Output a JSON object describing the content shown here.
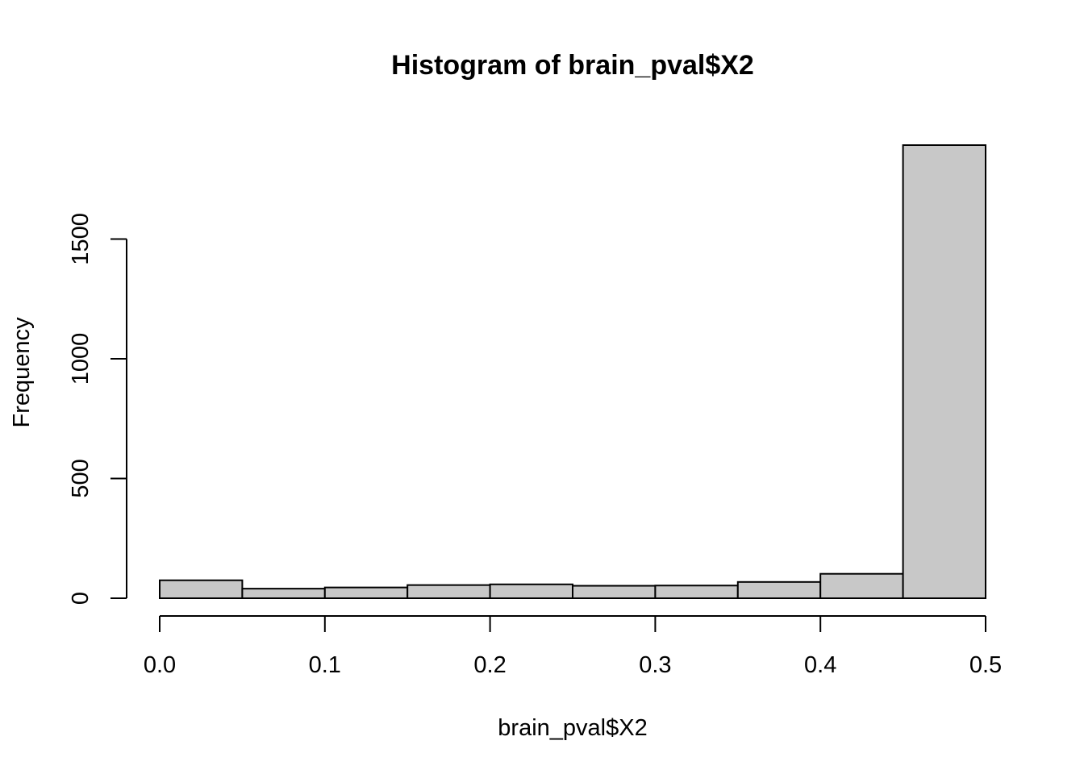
{
  "chart_data": {
    "type": "bar",
    "title": "Histogram of brain_pval$X2",
    "xlabel": "brain_pval$X2",
    "ylabel": "Frequency",
    "bins": [
      {
        "start": 0.0,
        "end": 0.05,
        "count": 75
      },
      {
        "start": 0.05,
        "end": 0.1,
        "count": 40
      },
      {
        "start": 0.1,
        "end": 0.15,
        "count": 45
      },
      {
        "start": 0.15,
        "end": 0.2,
        "count": 55
      },
      {
        "start": 0.2,
        "end": 0.25,
        "count": 58
      },
      {
        "start": 0.25,
        "end": 0.3,
        "count": 52
      },
      {
        "start": 0.3,
        "end": 0.35,
        "count": 53
      },
      {
        "start": 0.35,
        "end": 0.4,
        "count": 68
      },
      {
        "start": 0.4,
        "end": 0.45,
        "count": 102
      },
      {
        "start": 0.45,
        "end": 0.5,
        "count": 1892
      }
    ],
    "xlim": [
      0,
      0.5
    ],
    "ylim": [
      0,
      1892
    ],
    "xticks": [
      0.0,
      0.1,
      0.2,
      0.3,
      0.4,
      0.5
    ],
    "xtick_labels": [
      "0.0",
      "0.1",
      "0.2",
      "0.3",
      "0.4",
      "0.5"
    ],
    "yticks": [
      0,
      500,
      1000,
      1500
    ],
    "ytick_labels": [
      "0",
      "500",
      "1000",
      "1500"
    ],
    "bar_color": "#c8c8c8",
    "grid": false,
    "legend": "none"
  }
}
